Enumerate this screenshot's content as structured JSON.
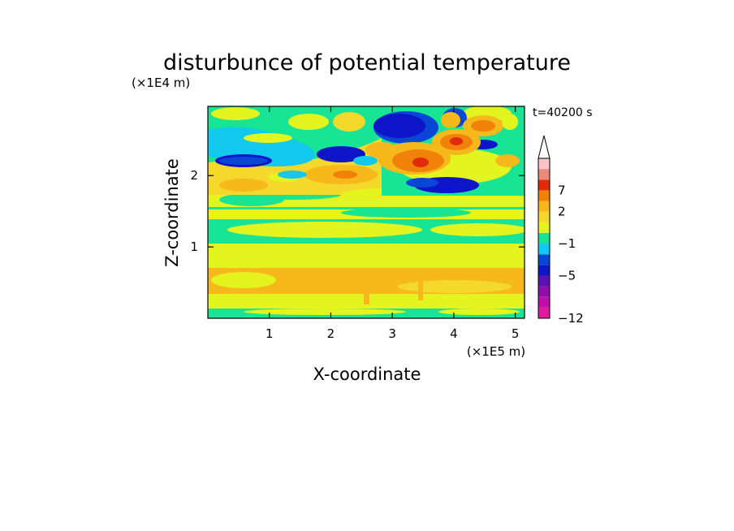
{
  "chart_data": {
    "type": "heatmap",
    "title": "disturbunce of potential temperature",
    "xlabel": "X-coordinate",
    "ylabel": "Z-coordinate",
    "x_unit": "(×1E5 m)",
    "y_unit": "(×1E4 m)",
    "time_label": "t=40200 s",
    "xlim": [
      0,
      5.15
    ],
    "ylim": [
      0,
      2.97
    ],
    "x_ticks": [
      {
        "value": 1,
        "label": "1"
      },
      {
        "value": 2,
        "label": "2"
      },
      {
        "value": 3,
        "label": "3"
      },
      {
        "value": 4,
        "label": "4"
      },
      {
        "value": 5,
        "label": "5"
      }
    ],
    "y_ticks": [
      {
        "value": 1,
        "label": "1"
      },
      {
        "value": 2,
        "label": "2"
      }
    ],
    "colorbar": {
      "colors": [
        "#e2189e",
        "#c20ea6",
        "#8d0fa8",
        "#5a12b4",
        "#0e14c8",
        "#0a46d6",
        "#12c8ee",
        "#18e496",
        "#e4f41e",
        "#f4d82c",
        "#f6b81a",
        "#f0820a",
        "#e02a0a",
        "#ea8a7a",
        "#f8c4c8"
      ],
      "ticks": [
        {
          "value": -12,
          "label": "−12"
        },
        {
          "value": -5,
          "label": "−5"
        },
        {
          "value": -1,
          "label": "−1"
        },
        {
          "value": 2,
          "label": "2"
        },
        {
          "value": 7,
          "label": "7"
        }
      ],
      "extend_top": true
    }
  }
}
